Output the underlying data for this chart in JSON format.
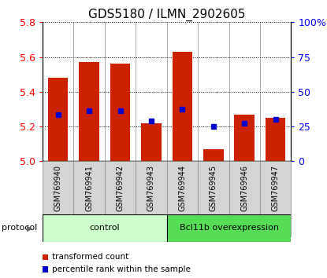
{
  "title": "GDS5180 / ILMN_2902605",
  "categories": [
    "GSM769940",
    "GSM769941",
    "GSM769942",
    "GSM769943",
    "GSM769944",
    "GSM769945",
    "GSM769946",
    "GSM769947"
  ],
  "bar_values": [
    5.48,
    5.57,
    5.56,
    5.22,
    5.63,
    5.07,
    5.27,
    5.25
  ],
  "bar_base": 5.0,
  "blue_markers": [
    5.27,
    5.29,
    5.29,
    5.23,
    5.3,
    5.2,
    5.22,
    5.24
  ],
  "ylim": [
    5.0,
    5.8
  ],
  "yticks_left": [
    5.0,
    5.2,
    5.4,
    5.6,
    5.8
  ],
  "yticks_right": [
    0,
    25,
    50,
    75,
    100
  ],
  "bar_color": "#cc2200",
  "marker_color": "#0000cc",
  "background_color": "#ffffff",
  "cell_bg_color": "#d4d4d4",
  "protocol_colors": [
    "#ccffcc",
    "#55dd55"
  ],
  "protocol_labels": [
    "control",
    "Bcl11b overexpression"
  ],
  "protocol_splits": [
    4,
    4
  ],
  "protocol_label": "protocol",
  "legend_labels": [
    "transformed count",
    "percentile rank within the sample"
  ],
  "legend_colors": [
    "#cc2200",
    "#0000cc"
  ],
  "title_fontsize": 11,
  "tick_fontsize": 9,
  "label_fontsize": 8,
  "bar_width": 0.65
}
